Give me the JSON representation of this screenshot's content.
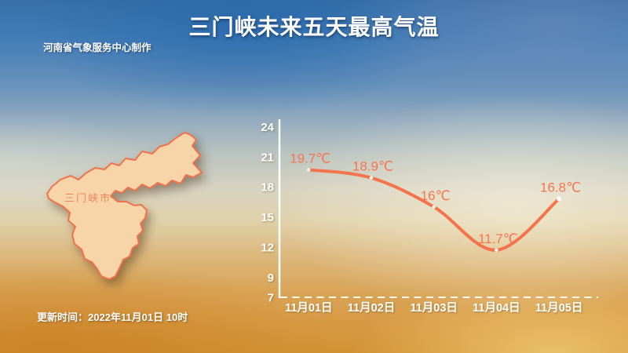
{
  "header": {
    "title": "三门峡未来五天最高气温",
    "credit": "河南省气象服务中心制作"
  },
  "footer": {
    "update_time": "更新时间：2022年11月01日 10时"
  },
  "map": {
    "region_label": "三门峡市",
    "fill_color": "#f8d5a9",
    "border_color": "#f1724a",
    "label_color": "#ee8660"
  },
  "chart_data": {
    "type": "line",
    "title": "三门峡未来五天最高气温",
    "categories": [
      "11月01日",
      "11月02日",
      "11月03日",
      "11月04日",
      "11月05日"
    ],
    "series": [
      {
        "name": "未来五天最高气温",
        "values": [
          19.7,
          18.9,
          16,
          11.7,
          16.8
        ]
      }
    ],
    "point_labels": [
      "19.7℃",
      "18.9℃",
      "16℃",
      "11.7℃",
      "16.8℃"
    ],
    "yticks": [
      24,
      21,
      18,
      15,
      12,
      9,
      7
    ],
    "ylim": [
      7,
      24.7
    ],
    "xlabel": "",
    "ylabel": "",
    "legend": "none",
    "grid": "dashed-baseline-only",
    "line_color": "#f3744b",
    "point_label_color": "#f4764f",
    "axis_color": "#ffffff",
    "marker_color": "#ffffff"
  }
}
